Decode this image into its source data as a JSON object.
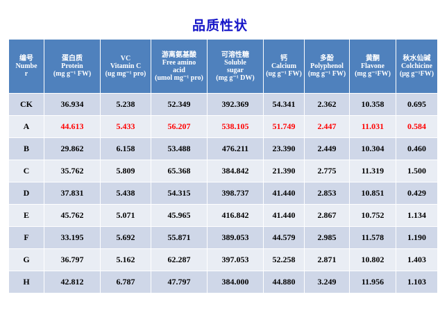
{
  "title": "品质性状",
  "colors": {
    "title": "#1515c8",
    "header_bg": "#4f81bd",
    "row_dark": "#cfd7e8",
    "row_light": "#e9edf4",
    "highlight": "#ff0000"
  },
  "headers": [
    {
      "zh": "编号",
      "en": "Numbe",
      "en2": "r",
      "unit": ""
    },
    {
      "zh": "蛋白质",
      "en": "Protein",
      "en2": "",
      "unit": "(mg g⁻¹ FW)"
    },
    {
      "zh": "VC",
      "en": "Vitamin C",
      "en2": "",
      "unit": "(ug mg⁻¹ pro)"
    },
    {
      "zh": "游离氨基酸",
      "en": "Free amino",
      "en2": "acid",
      "unit": "(umol mg⁻¹ pro)"
    },
    {
      "zh": "可溶性糖",
      "en": "Soluble",
      "en2": "sugar",
      "unit": "(mg g⁻¹ DW)"
    },
    {
      "zh": "钙",
      "en": "Calcium",
      "en2": "",
      "unit": "(ug g⁻¹ FW)"
    },
    {
      "zh": "多酚",
      "en": "Polyphenol",
      "en2": "",
      "unit": "(mg g⁻¹ FW)"
    },
    {
      "zh": "黄酮",
      "en": "Flavone",
      "en2": "",
      "unit": "(mg g⁻¹FW)"
    },
    {
      "zh": "秋水仙碱",
      "en": "Colchicine",
      "en2": "",
      "unit": "(μg g⁻¹FW)"
    }
  ],
  "rows": [
    {
      "id": "CK",
      "values": [
        "36.934",
        "5.238",
        "52.349",
        "392.369",
        "54.341",
        "2.362",
        "10.358",
        "0.695"
      ],
      "highlight": false
    },
    {
      "id": "A",
      "values": [
        "44.613",
        "5.433",
        "56.207",
        "538.105",
        "51.749",
        "2.447",
        "11.031",
        "0.584"
      ],
      "highlight": true
    },
    {
      "id": "B",
      "values": [
        "29.862",
        "6.158",
        "53.488",
        "476.211",
        "23.390",
        "2.449",
        "10.304",
        "0.460"
      ],
      "highlight": false
    },
    {
      "id": "C",
      "values": [
        "35.762",
        "5.809",
        "65.368",
        "384.842",
        "21.390",
        "2.775",
        "11.319",
        "1.500"
      ],
      "highlight": false
    },
    {
      "id": "D",
      "values": [
        "37.831",
        "5.438",
        "54.315",
        "398.737",
        "41.440",
        "2.853",
        "10.851",
        "0.429"
      ],
      "highlight": false
    },
    {
      "id": "E",
      "values": [
        "45.762",
        "5.071",
        "45.965",
        "416.842",
        "41.440",
        "2.867",
        "10.752",
        "1.134"
      ],
      "highlight": false
    },
    {
      "id": "F",
      "values": [
        "33.195",
        "5.692",
        "55.871",
        "389.053",
        "44.579",
        "2.985",
        "11.578",
        "1.190"
      ],
      "highlight": false
    },
    {
      "id": "G",
      "values": [
        "36.797",
        "5.162",
        "62.287",
        "397.053",
        "52.258",
        "2.871",
        "10.802",
        "1.403"
      ],
      "highlight": false
    },
    {
      "id": "H",
      "values": [
        "42.812",
        "6.787",
        "47.797",
        "384.000",
        "44.880",
        "3.249",
        "11.956",
        "1.103"
      ],
      "highlight": false
    }
  ]
}
